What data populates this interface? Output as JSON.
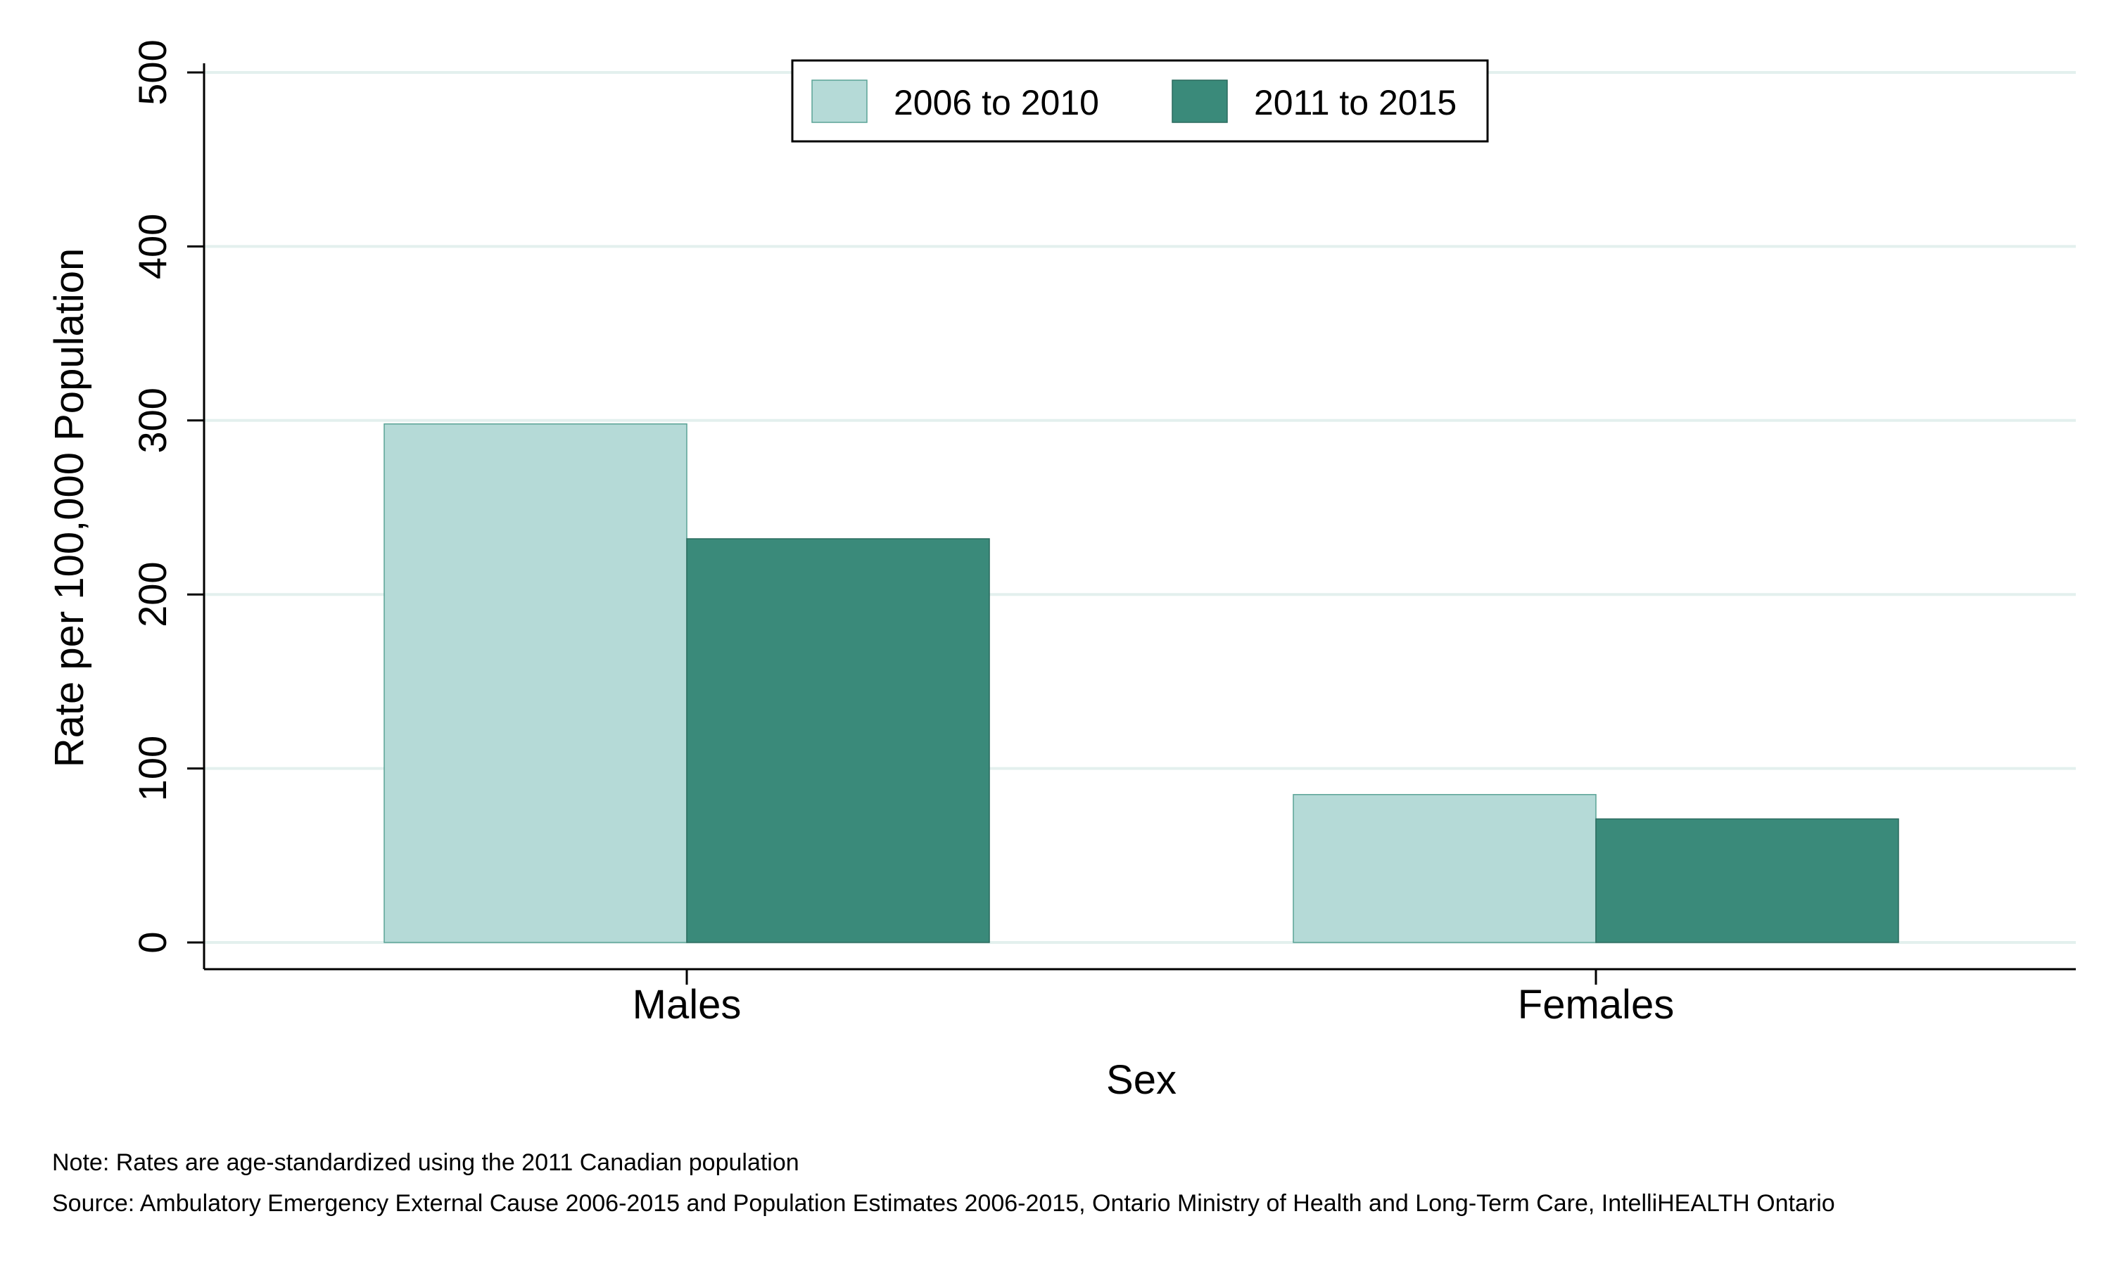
{
  "chart_data": {
    "type": "bar",
    "categories": [
      "Males",
      "Females"
    ],
    "series": [
      {
        "name": "2006 to 2010",
        "values": [
          298,
          85
        ],
        "color": "#b5dad7"
      },
      {
        "name": "2011 to 2015",
        "values": [
          232,
          71
        ],
        "color": "#3a8a7a"
      }
    ],
    "title": "",
    "xlabel": "Sex",
    "ylabel": "Rate per 100,000 Population",
    "ylim": [
      0,
      500
    ],
    "yticks": [
      "0",
      "100",
      "200",
      "300",
      "400",
      "500"
    ],
    "grid": true,
    "legend_position": "top-center"
  },
  "footnotes": {
    "note": "Note: Rates are age-standardized using the 2011 Canadian population",
    "source": "Source: Ambulatory Emergency External Cause 2006-2015 and Population Estimates 2006-2015, Ontario Ministry of Health and Long-Term Care, IntelliHEALTH Ontario"
  }
}
